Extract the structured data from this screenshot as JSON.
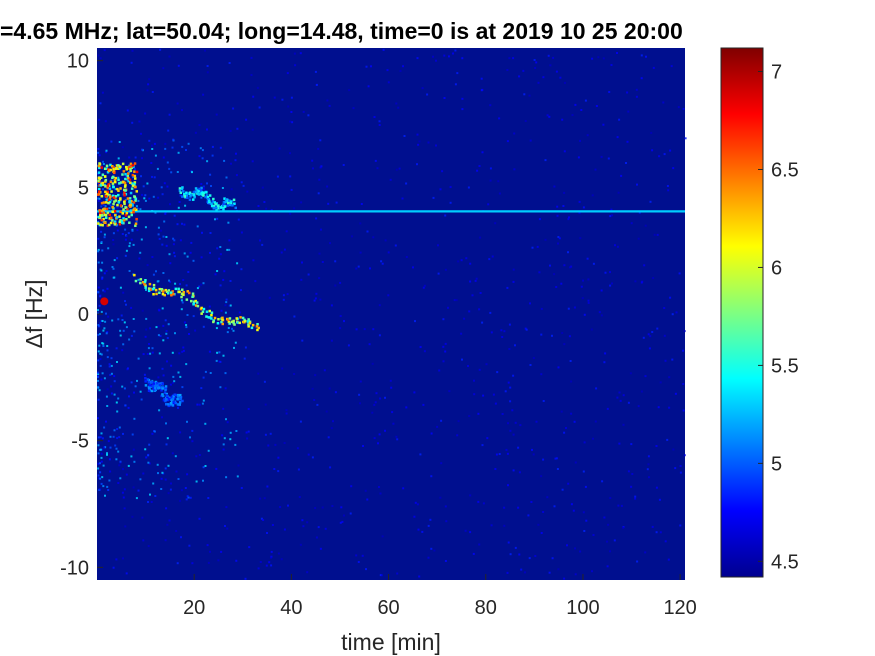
{
  "chart_data": {
    "type": "heatmap",
    "title": "=4.65 MHz;  lat=50.04; long=14.48, time=0 is at 2019 10 25 20:00",
    "xlabel": "time [min]",
    "ylabel": "Δf [Hz]",
    "xlim": [
      0,
      121
    ],
    "ylim": [
      -10.5,
      10.5
    ],
    "x_ticks": [
      20,
      40,
      60,
      80,
      100,
      120
    ],
    "x_tick_labels": [
      "20",
      "40",
      "60",
      "80",
      "100",
      "120"
    ],
    "y_ticks": [
      10,
      5,
      0,
      -5,
      -10
    ],
    "y_tick_labels": [
      "10",
      "5",
      "0",
      "-5",
      "-10"
    ],
    "colormap": "jet",
    "background_color": "#000f8f",
    "colorbar": {
      "range": [
        4.42,
        7.12
      ],
      "ticks": [
        7,
        6.5,
        6,
        5.5,
        5,
        4.5
      ],
      "tick_labels": [
        "7",
        "6.5",
        "6",
        "5.5",
        "5",
        "4.5"
      ]
    },
    "features": [
      {
        "name": "steady carrier line",
        "y": 4.05,
        "x_range": [
          0,
          121
        ],
        "value": 5.3
      },
      {
        "name": "bright burst",
        "x_range": [
          0,
          8
        ],
        "y_range": [
          3.5,
          6
        ],
        "value": 6.8
      },
      {
        "name": "diagonal trace upper",
        "from": [
          17,
          5
        ],
        "to": [
          28,
          4.2
        ],
        "value": 5.6
      },
      {
        "name": "diagonal trace middle",
        "from": [
          8,
          1.5
        ],
        "to": [
          33,
          -0.7
        ],
        "value": 6.5
      },
      {
        "name": "diagonal trace lower",
        "from": [
          10,
          -2.5
        ],
        "to": [
          17,
          -3.6
        ],
        "value": 5.2
      },
      {
        "name": "bright spot",
        "x": 1.5,
        "y": 0.5,
        "value": 6.9
      }
    ]
  }
}
